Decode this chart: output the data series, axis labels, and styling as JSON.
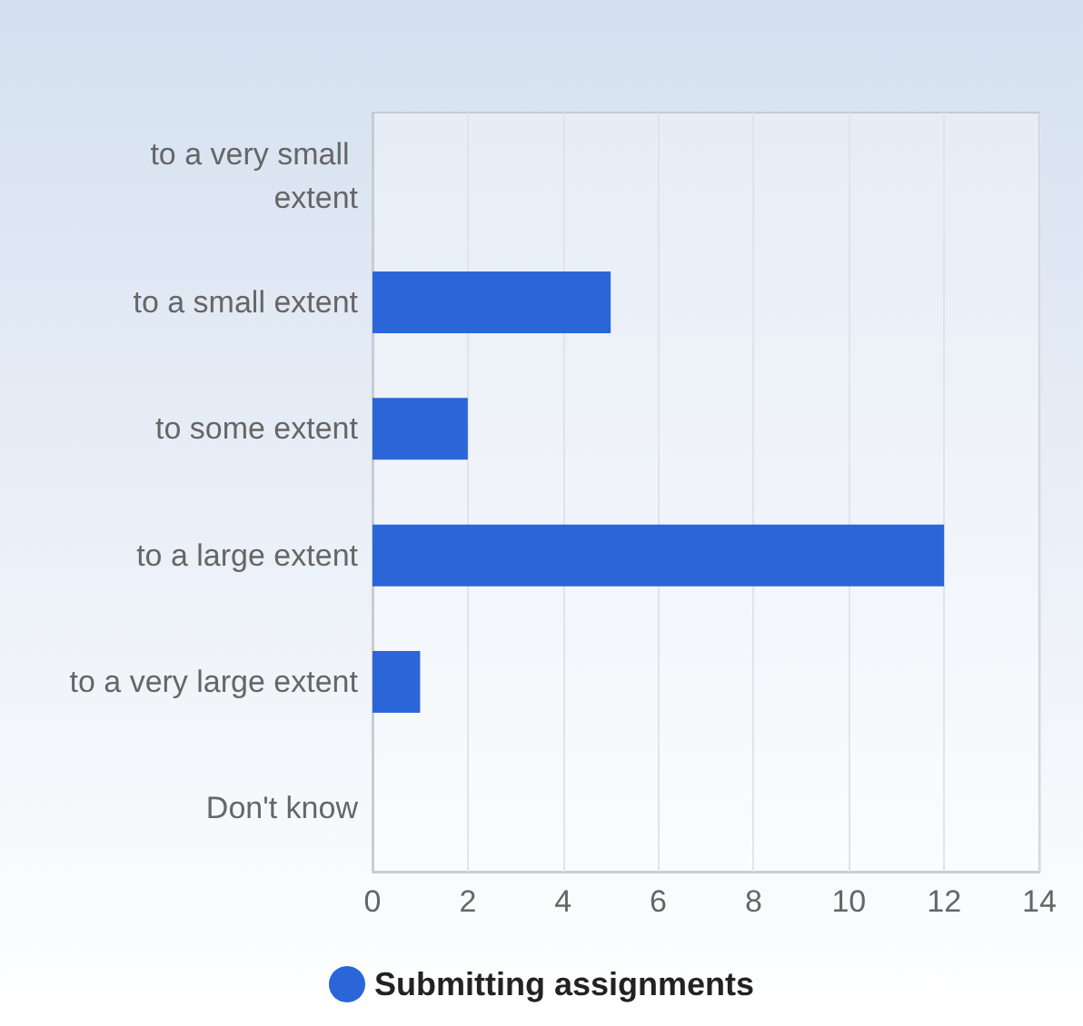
{
  "chart_data": {
    "type": "bar",
    "orientation": "horizontal",
    "categories": [
      "to a very small extent",
      "to a small extent",
      "to some extent",
      "to a large extent",
      "to a very large extent",
      "Don't know"
    ],
    "series": [
      {
        "name": "Submitting assignments",
        "color": "#2a66d8",
        "values": [
          0,
          5,
          2,
          12,
          1,
          0
        ]
      }
    ],
    "xlim": [
      0,
      14
    ],
    "xticks": [
      0,
      2,
      4,
      6,
      8,
      10,
      12,
      14
    ],
    "grid": "x",
    "legend": "bottom"
  }
}
